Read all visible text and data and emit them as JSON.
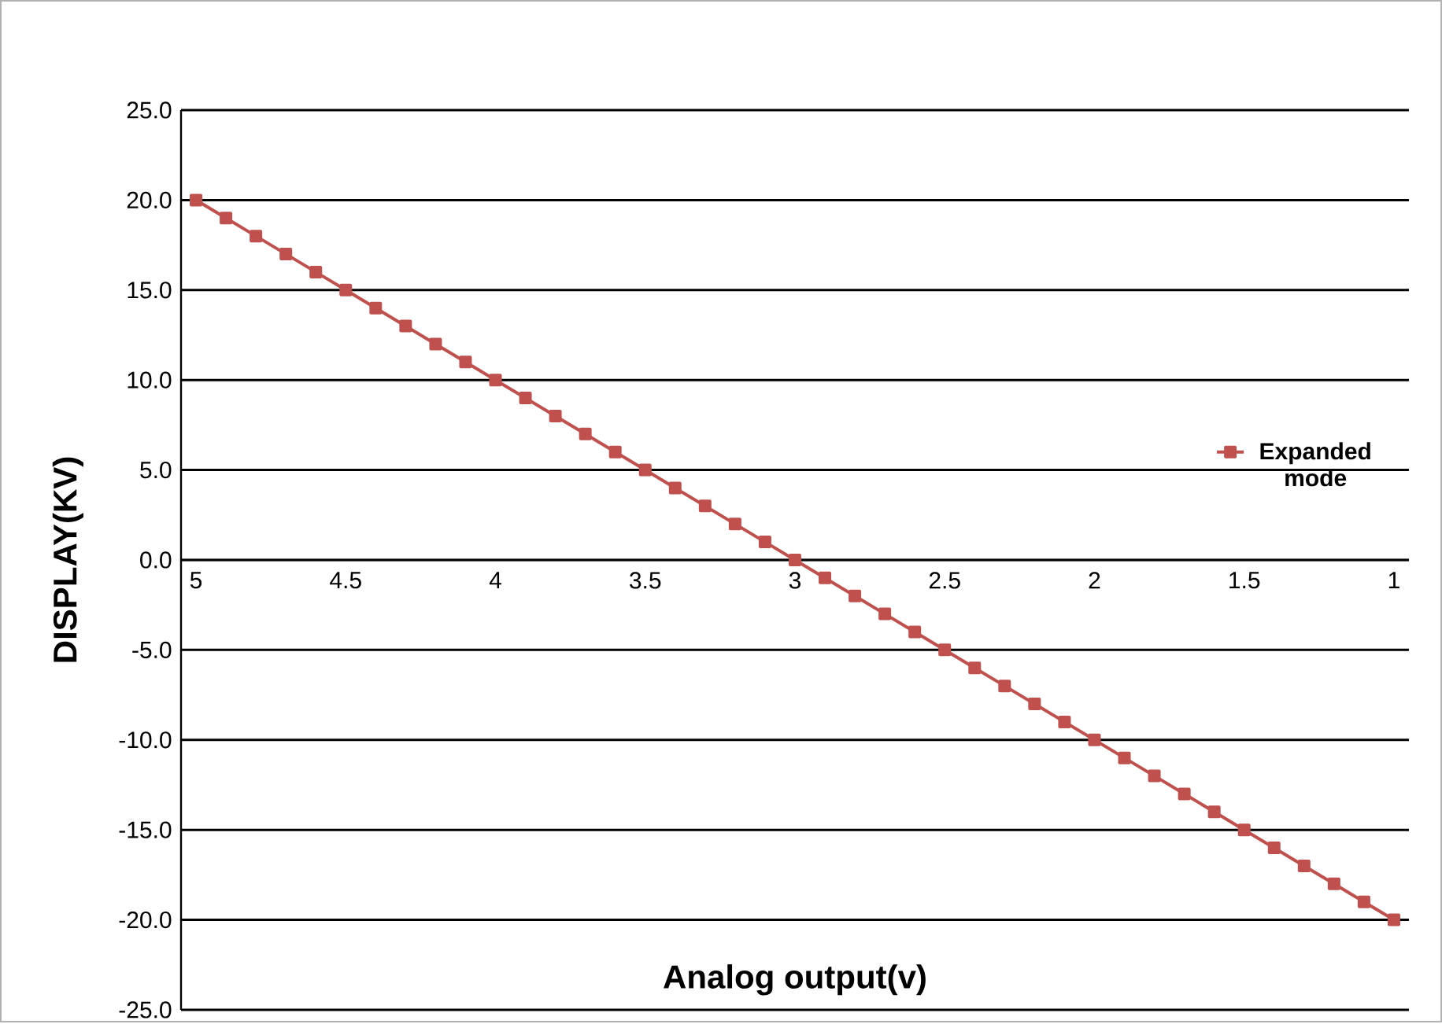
{
  "chart_data": {
    "type": "line",
    "xlabel": "Analog output(v)",
    "ylabel": "DISPLAY(KV)",
    "x": [
      5,
      4.9,
      4.8,
      4.7,
      4.6,
      4.5,
      4.4,
      4.3,
      4.2,
      4.1,
      4,
      3.9,
      3.8,
      3.7,
      3.6,
      3.5,
      3.4,
      3.3,
      3.2,
      3.1,
      3,
      2.9,
      2.8,
      2.7,
      2.6,
      2.5,
      2.4,
      2.3,
      2.2,
      2.1,
      2,
      1.9,
      1.8,
      1.7,
      1.6,
      1.5,
      1.4,
      1.3,
      1.2,
      1.1,
      1
    ],
    "series": [
      {
        "name": "Expanded mode",
        "color": "#c0504d",
        "values": [
          20,
          19,
          18,
          17,
          16,
          15,
          14,
          13,
          12,
          11,
          10,
          9,
          8,
          7,
          6,
          5,
          4,
          3,
          2,
          1,
          0,
          -1,
          -2,
          -3,
          -4,
          -5,
          -6,
          -7,
          -8,
          -9,
          -10,
          -11,
          -12,
          -13,
          -14,
          -15,
          -16,
          -17,
          -18,
          -19,
          -20
        ]
      }
    ],
    "xlim": [
      5.05,
      0.95
    ],
    "xticks": [
      5,
      4.5,
      4,
      3.5,
      3,
      2.5,
      2,
      1.5,
      1
    ],
    "ylim": [
      -25,
      25
    ],
    "yticks": [
      {
        "value": -25,
        "label": "-25.0"
      },
      {
        "value": -20,
        "label": "-20.0"
      },
      {
        "value": -15,
        "label": "-15.0"
      },
      {
        "value": -10,
        "label": "-10.0"
      },
      {
        "value": -5,
        "label": "-5.0"
      },
      {
        "value": 0,
        "label": "0.0"
      },
      {
        "value": 5,
        "label": "5.0"
      },
      {
        "value": 10,
        "label": "10.0"
      },
      {
        "value": 15,
        "label": "15.0"
      },
      {
        "value": 20,
        "label": "20.0"
      },
      {
        "value": 25,
        "label": "25.0"
      }
    ],
    "grid": "y",
    "legend": "right",
    "marker": "square",
    "line_style": "solid"
  }
}
